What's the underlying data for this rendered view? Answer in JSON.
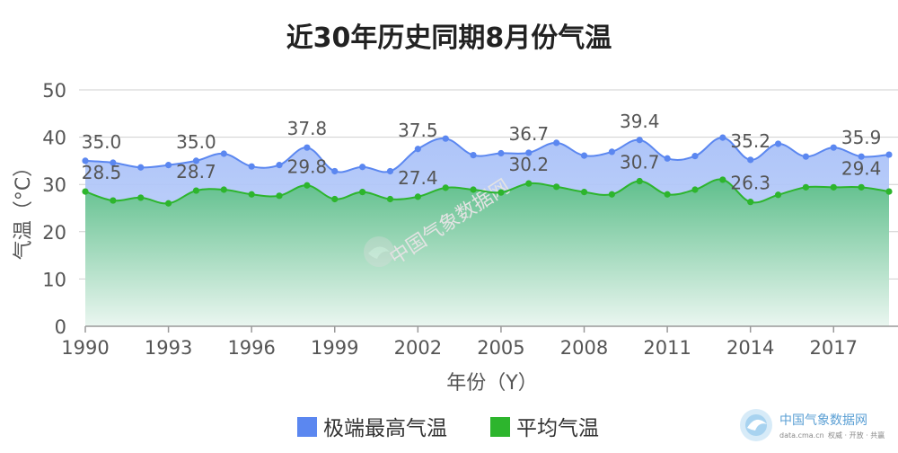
{
  "chart_data": {
    "type": "line",
    "title": "近30年历史同期8月份气温",
    "xlabel": "年份（Y）",
    "ylabel": "气温（°C）",
    "ylim": [
      0,
      50
    ],
    "yticks": [
      "0",
      "10",
      "20",
      "30",
      "40",
      "50"
    ],
    "xticks": [
      "1990",
      "1993",
      "1996",
      "1999",
      "2002",
      "2005",
      "2008",
      "2011",
      "2014",
      "2017"
    ],
    "xlim": [
      1990,
      2019
    ],
    "grid": true,
    "legend_position": "bottom",
    "x": [
      1990,
      1991,
      1992,
      1993,
      1994,
      1995,
      1996,
      1997,
      1998,
      1999,
      2000,
      2001,
      2002,
      2003,
      2004,
      2005,
      2006,
      2007,
      2008,
      2009,
      2010,
      2011,
      2012,
      2013,
      2014,
      2015,
      2016,
      2017,
      2018,
      2019
    ],
    "series": [
      {
        "name": "极端最高气温",
        "color": "#5b87f0",
        "fill_color": "#a9c1f8",
        "values": [
          35.0,
          34.6,
          33.6,
          34.1,
          35.0,
          36.5,
          33.8,
          34.1,
          37.8,
          32.8,
          33.7,
          32.8,
          37.5,
          39.7,
          36.2,
          36.6,
          36.7,
          38.8,
          36.1,
          36.9,
          39.4,
          35.5,
          36.0,
          39.9,
          35.2,
          38.6,
          35.9,
          37.8,
          35.9,
          36.3
        ],
        "labels": [
          {
            "index": 0,
            "text": "35.0"
          },
          {
            "index": 4,
            "text": "35.0"
          },
          {
            "index": 8,
            "text": "37.8"
          },
          {
            "index": 12,
            "text": "37.5"
          },
          {
            "index": 16,
            "text": "36.7"
          },
          {
            "index": 20,
            "text": "39.4"
          },
          {
            "index": 24,
            "text": "35.2"
          },
          {
            "index": 28,
            "text": "35.9"
          }
        ]
      },
      {
        "name": "平均气温",
        "color": "#2db52d",
        "fill_color": "#6cc497",
        "values": [
          28.5,
          26.6,
          27.2,
          26.0,
          28.7,
          28.9,
          27.9,
          27.6,
          29.8,
          26.9,
          28.4,
          26.9,
          27.4,
          29.3,
          28.9,
          28.3,
          30.2,
          29.5,
          28.4,
          27.9,
          30.7,
          27.9,
          28.9,
          31.0,
          26.3,
          27.8,
          29.4,
          29.4,
          29.4,
          28.5
        ],
        "labels": [
          {
            "index": 0,
            "text": "28.5"
          },
          {
            "index": 4,
            "text": "28.7"
          },
          {
            "index": 8,
            "text": "29.8"
          },
          {
            "index": 12,
            "text": "27.4"
          },
          {
            "index": 16,
            "text": "30.2"
          },
          {
            "index": 20,
            "text": "30.7"
          },
          {
            "index": 24,
            "text": "26.3"
          },
          {
            "index": 28,
            "text": "29.4"
          }
        ]
      }
    ]
  },
  "watermark": {
    "text": "中国气象数据网"
  },
  "logo": {
    "name": "中国气象数据网",
    "url_text": "data.cma.cn",
    "slogan": "权威 · 开放 · 共赢",
    "icon": "cma-swirl-icon"
  }
}
